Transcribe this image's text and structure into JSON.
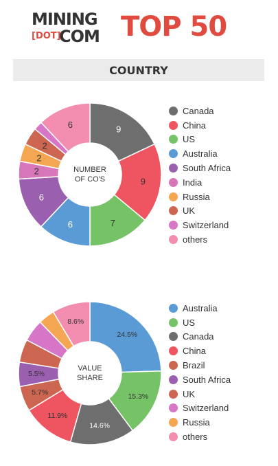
{
  "logo": {
    "line1": "MINING",
    "dot": "[DOT]",
    "line2": "COM"
  },
  "title": "TOP 50",
  "section": "COUNTRY",
  "colors": {
    "Canada": "#6e6e6e",
    "China": "#ef5560",
    "US": "#76c266",
    "Australia": "#5b9bd5",
    "South Africa": "#9b5fb0",
    "India": "#d777b9",
    "Russia": "#f5a653",
    "UK": "#cc6651",
    "Switzerland": "#d776c7",
    "others": "#f28db0",
    "Brazil": "#cc6651"
  },
  "chart_data": [
    {
      "type": "pie",
      "center_label": [
        "NUMBER",
        "OF CO'S"
      ],
      "legend_position": "right",
      "labels": [
        "Canada",
        "China",
        "US",
        "Australia",
        "South Africa",
        "India",
        "Russia",
        "UK",
        "Switzerland",
        "others"
      ],
      "values": [
        9,
        9,
        7,
        6,
        6,
        2,
        2,
        2,
        1,
        6
      ],
      "data_labels": [
        "9",
        "9",
        "7",
        "6",
        "6",
        "2",
        "2",
        "2",
        "",
        "6"
      ]
    },
    {
      "type": "pie",
      "center_label": [
        "VALUE",
        "SHARE"
      ],
      "legend_position": "right",
      "labels": [
        "Australia",
        "US",
        "Canada",
        "China",
        "Brazil",
        "South Africa",
        "UK",
        "Switzerland",
        "Russia",
        "others"
      ],
      "values": [
        24.5,
        15.3,
        14.6,
        11.9,
        5.7,
        5.5,
        5.2,
        5.0,
        3.7,
        8.6
      ],
      "data_labels": [
        "24.5%",
        "15.3%",
        "14.6%",
        "11.9%",
        "5.7%",
        "5.5%",
        "",
        "",
        "",
        "8.6%"
      ]
    }
  ]
}
